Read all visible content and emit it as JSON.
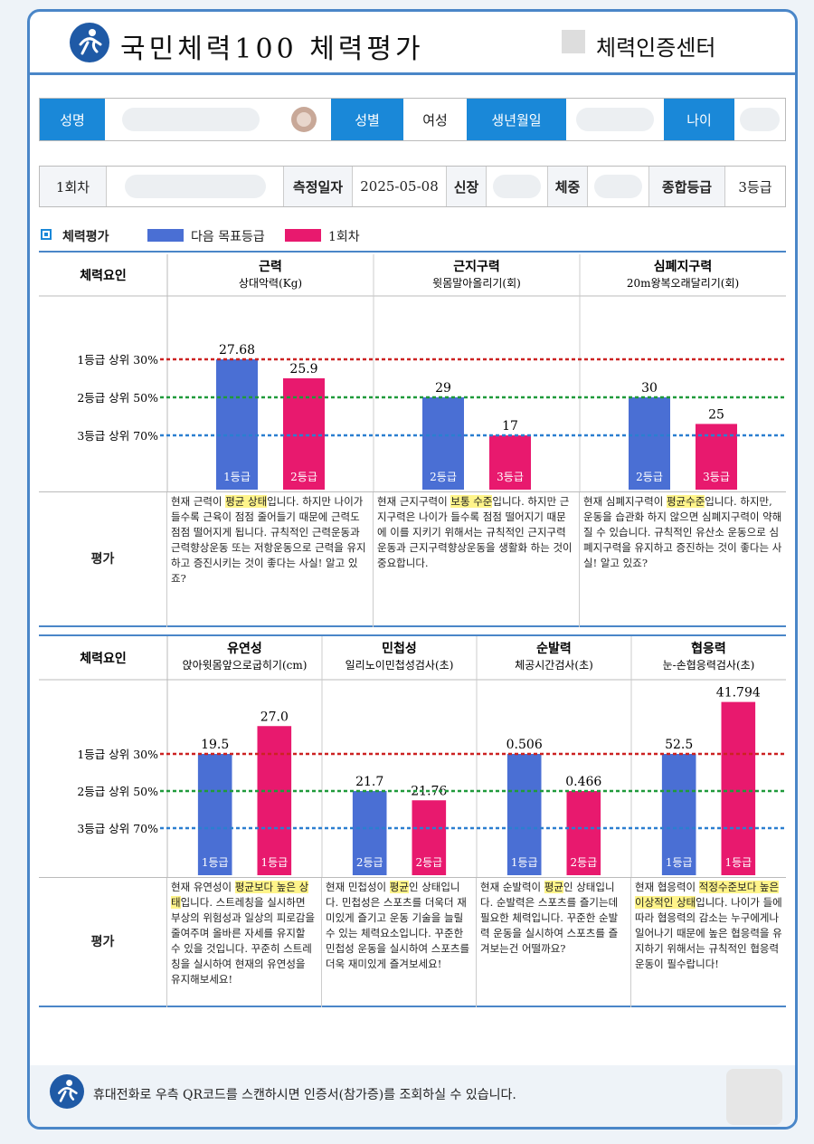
{
  "header": {
    "title": "국민체력100 체력평가",
    "org": "체력인증센터"
  },
  "person": {
    "name_label": "성명",
    "gender_label": "성별",
    "gender_value": "여성",
    "birth_label": "생년월일",
    "age_label": "나이"
  },
  "measure": {
    "round": "1회차",
    "date_label": "측정일자",
    "date_value": "2025-05-08",
    "height_label": "신장",
    "weight_label": "체중",
    "grade_label": "종합등급",
    "grade_value": "3등급"
  },
  "legend": {
    "title": "체력평가",
    "target_label": "다음 목표등급",
    "target_color": "#4a6fd4",
    "round_label": "1회차",
    "round_color": "#e8196e"
  },
  "grade_lines": {
    "g1": "1등급 상위 30%",
    "g2": "2등급 상위 50%",
    "g3": "3등급 상위 70%",
    "g1_color": "#cc2222",
    "g2_color": "#1f9a3a",
    "g3_color": "#2b7fd0"
  },
  "row_labels": {
    "factor": "체력요인",
    "eval": "평가"
  },
  "chart_data": [
    {
      "type": "bar",
      "panels": [
        {
          "factor": "근력",
          "test": "상대악력(Kg)",
          "series": [
            {
              "name": "다음 목표등급",
              "value": 27.68,
              "value_label": "27.68",
              "grade": "1등급",
              "level": 1
            },
            {
              "name": "1회차",
              "value": 25.9,
              "value_label": "25.9",
              "grade": "2등급",
              "level": 1.5
            }
          ],
          "eval_parts": [
            {
              "t": "현재 근력이 "
            },
            {
              "t": "평균 상태",
              "h": true
            },
            {
              "t": "입니다. 하지만 나이가 들수록 근육이 점점 줄어들기 때문에 근력도 점점 떨어지게 됩니다. 규칙적인 근력운동과 근력향상운동 또는 저항운동으로 근력을 유지하고 증진시키는 것이 좋다는 사실! 알고 있죠?"
            }
          ]
        },
        {
          "factor": "근지구력",
          "test": "윗몸말아올리기(회)",
          "series": [
            {
              "name": "다음 목표등급",
              "value": 29,
              "value_label": "29",
              "grade": "2등급",
              "level": 2
            },
            {
              "name": "1회차",
              "value": 17,
              "value_label": "17",
              "grade": "3등급",
              "level": 3
            }
          ],
          "eval_parts": [
            {
              "t": "현재 근지구력이 "
            },
            {
              "t": "보통 수준",
              "h": true
            },
            {
              "t": "입니다. 하지만 근지구력은 나이가 들수록 점점 떨어지기 때문에 이를 지키기 위해서는 규칙적인 근지구력운동과 근지구력향상운동을 생활화 하는 것이 중요합니다."
            }
          ]
        },
        {
          "factor": "심폐지구력",
          "test": "20m왕복오래달리기(회)",
          "series": [
            {
              "name": "다음 목표등급",
              "value": 30,
              "value_label": "30",
              "grade": "2등급",
              "level": 2
            },
            {
              "name": "1회차",
              "value": 25,
              "value_label": "25",
              "grade": "3등급",
              "level": 2.7
            }
          ],
          "eval_parts": [
            {
              "t": "현재 심폐지구력이 "
            },
            {
              "t": "평균수준",
              "h": true
            },
            {
              "t": "입니다. 하지만, 운동을 습관화 하지 않으면 심폐지구력이 약해 질 수 있습니다. 규칙적인 유산소 운동으로 심폐지구력을 유지하고 증진하는 것이 좋다는 사실! 알고 있죠?"
            }
          ]
        }
      ]
    },
    {
      "type": "bar",
      "panels": [
        {
          "factor": "유연성",
          "test": "앉아윗몸앞으로굽히기(cm)",
          "series": [
            {
              "name": "다음 목표등급",
              "value": 19.5,
              "value_label": "19.5",
              "grade": "1등급",
              "level": 1
            },
            {
              "name": "1회차",
              "value": 27.0,
              "value_label": "27.0",
              "grade": "1등급",
              "level": 0.25
            }
          ],
          "eval_parts": [
            {
              "t": "현재 유연성이 "
            },
            {
              "t": "평균보다 높은 상태",
              "h": true
            },
            {
              "t": "입니다. 스트레칭을 실시하면 부상의 위험성과 일상의 피로감을 줄여주며 올바른 자세를 유지할 수 있을 것입니다. 꾸준히 스트레칭을 실시하여 현재의 유연성을 유지해보세요!"
            }
          ]
        },
        {
          "factor": "민첩성",
          "test": "일리노이민첩성검사(초)",
          "series": [
            {
              "name": "다음 목표등급",
              "value": 21.7,
              "value_label": "21.7",
              "grade": "2등급",
              "level": 2
            },
            {
              "name": "1회차",
              "value": 21.76,
              "value_label": "21.76",
              "grade": "2등급",
              "level": 2.25
            }
          ],
          "eval_parts": [
            {
              "t": "현재 민첩성이 "
            },
            {
              "t": "평균",
              "h": true
            },
            {
              "t": "인 상태입니다. 민첩성은 스포츠를 더욱더 재미있게 즐기고 운동 기술을 늘릴 수 있는 체력요소입니다. 꾸준한 민첩성 운동을 실시하여 스포츠를 더욱 재미있게 즐겨보세요!"
            }
          ]
        },
        {
          "factor": "순발력",
          "test": "체공시간검사(초)",
          "series": [
            {
              "name": "다음 목표등급",
              "value": 0.506,
              "value_label": "0.506",
              "grade": "1등급",
              "level": 1
            },
            {
              "name": "1회차",
              "value": 0.466,
              "value_label": "0.466",
              "grade": "2등급",
              "level": 2
            }
          ],
          "eval_parts": [
            {
              "t": "현재 순발력이 "
            },
            {
              "t": "평균",
              "h": true
            },
            {
              "t": "인 상태입니다. 순발력은 스포츠를 즐기는데 필요한 체력입니다. 꾸준한 순발력 운동을 실시하여 스포츠를 즐겨보는건 어떨까요?"
            }
          ]
        },
        {
          "factor": "협응력",
          "test": "눈-손협응력검사(초)",
          "series": [
            {
              "name": "다음 목표등급",
              "value": 52.5,
              "value_label": "52.5",
              "grade": "1등급",
              "level": 1
            },
            {
              "name": "1회차",
              "value": 41.794,
              "value_label": "41.794",
              "grade": "1등급",
              "level": -0.4
            }
          ],
          "eval_parts": [
            {
              "t": "현재 협응력이 "
            },
            {
              "t": "적정수준보다 높은 이상적인 상태",
              "h": true
            },
            {
              "t": "입니다. 나이가 들에 따라 협응력의 감소는 누구에게나 일어나기 때문에 높은 협응력을 유지하기 위해서는 규칙적인 협응력 운동이 필수랍니다!"
            }
          ]
        }
      ]
    }
  ],
  "footer": {
    "text": "휴대전화로 우측 QR코드를 스캔하시면 인증서(참가증)를 조회하실 수 있습니다."
  }
}
